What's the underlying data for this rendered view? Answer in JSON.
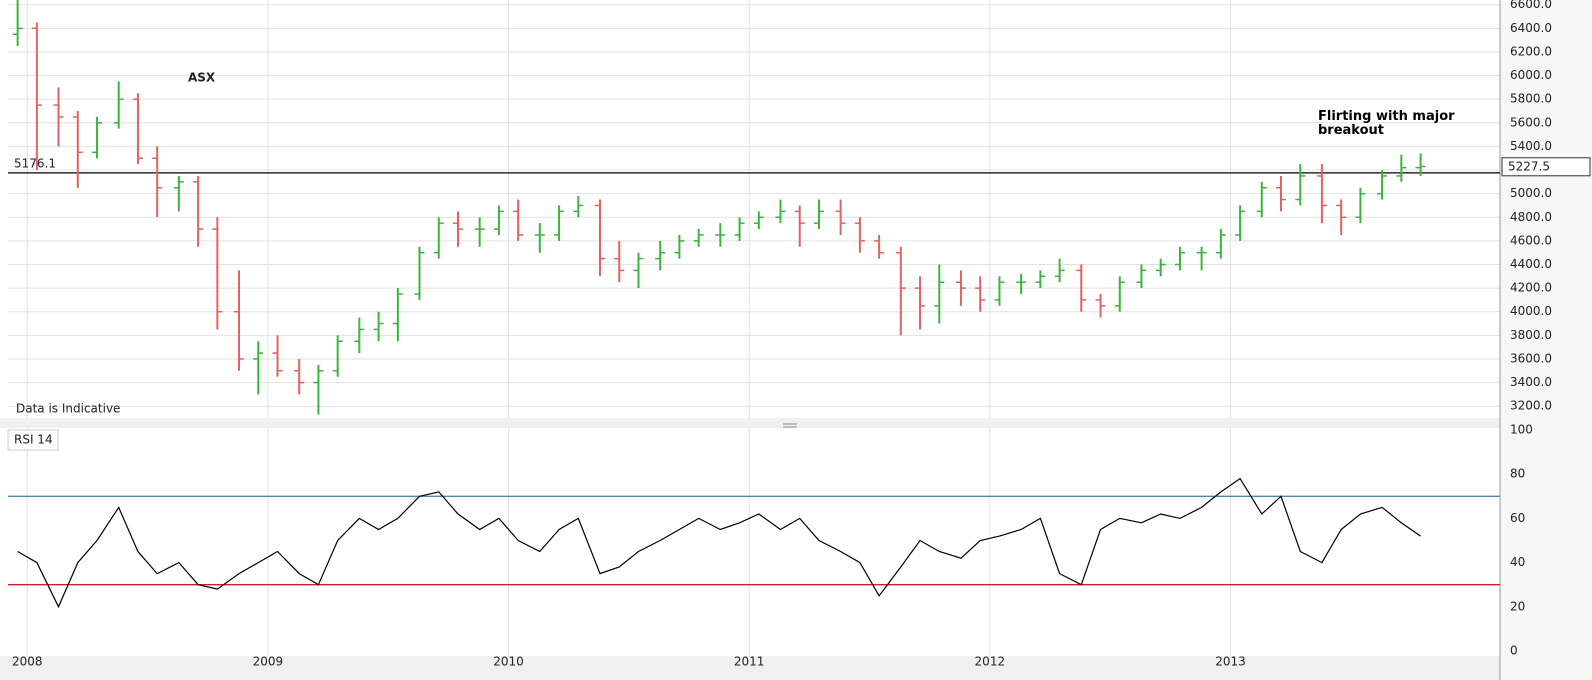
{
  "chart_data": [
    {
      "type": "ohlc",
      "title": "ASX",
      "annotation": "Flirting with major breakout",
      "note": "Data is Indicative",
      "reference_line": 5176.1,
      "last_price": 5227.5,
      "up_color": "#3cb43c",
      "down_color": "#e06262",
      "x": [
        2007.96,
        2008.04,
        2008.13,
        2008.21,
        2008.29,
        2008.38,
        2008.46,
        2008.54,
        2008.63,
        2008.71,
        2008.79,
        2008.88,
        2008.96,
        2009.04,
        2009.13,
        2009.21,
        2009.29,
        2009.38,
        2009.46,
        2009.54,
        2009.63,
        2009.71,
        2009.79,
        2009.88,
        2009.96,
        2010.04,
        2010.13,
        2010.21,
        2010.29,
        2010.38,
        2010.46,
        2010.54,
        2010.63,
        2010.71,
        2010.79,
        2010.88,
        2010.96,
        2011.04,
        2011.13,
        2011.21,
        2011.29,
        2011.38,
        2011.46,
        2011.54,
        2011.63,
        2011.71,
        2011.79,
        2011.88,
        2011.96,
        2012.04,
        2012.13,
        2012.21,
        2012.29,
        2012.38,
        2012.46,
        2012.54,
        2012.63,
        2012.71,
        2012.79,
        2012.88,
        2012.96,
        2013.04,
        2013.13,
        2013.21,
        2013.29,
        2013.38,
        2013.46,
        2013.54,
        2013.63,
        2013.71,
        2013.79
      ],
      "open": [
        6350,
        6400,
        5750,
        5650,
        5350,
        5600,
        5800,
        5300,
        5050,
        5100,
        4700,
        4000,
        3600,
        3650,
        3500,
        3400,
        3500,
        3750,
        3850,
        3900,
        4150,
        4500,
        4750,
        4700,
        4700,
        4850,
        4650,
        4650,
        4850,
        4900,
        4450,
        4350,
        4450,
        4500,
        4600,
        4650,
        4650,
        4750,
        4800,
        4850,
        4750,
        4850,
        4750,
        4600,
        4500,
        4200,
        4050,
        4250,
        4200,
        4100,
        4250,
        4250,
        4300,
        4350,
        4100,
        4050,
        4250,
        4350,
        4400,
        4500,
        4500,
        4650,
        4850,
        5050,
        4950,
        5150,
        4900,
        4800,
        5000,
        5150,
        5220
      ],
      "high": [
        6640,
        6450,
        5900,
        5700,
        5650,
        5950,
        5850,
        5400,
        5150,
        5150,
        4800,
        4350,
        3750,
        3800,
        3600,
        3550,
        3800,
        3950,
        4000,
        4200,
        4550,
        4800,
        4850,
        4800,
        4900,
        4950,
        4750,
        4900,
        4980,
        4950,
        4600,
        4500,
        4600,
        4650,
        4700,
        4750,
        4800,
        4850,
        4950,
        4900,
        4950,
        4950,
        4800,
        4650,
        4550,
        4300,
        4400,
        4350,
        4300,
        4300,
        4320,
        4350,
        4450,
        4400,
        4150,
        4300,
        4400,
        4450,
        4550,
        4550,
        4700,
        4900,
        5100,
        5150,
        5250,
        5250,
        4950,
        5050,
        5200,
        5330,
        5340
      ],
      "low": [
        6250,
        5200,
        5400,
        5050,
        5300,
        5550,
        5250,
        4800,
        4850,
        4550,
        3850,
        3500,
        3300,
        3450,
        3300,
        3130,
        3450,
        3650,
        3750,
        3750,
        4100,
        4450,
        4550,
        4550,
        4650,
        4600,
        4500,
        4600,
        4800,
        4300,
        4250,
        4200,
        4350,
        4450,
        4550,
        4550,
        4600,
        4700,
        4750,
        4550,
        4700,
        4650,
        4500,
        4450,
        3800,
        3850,
        3900,
        4050,
        4000,
        4050,
        4150,
        4200,
        4250,
        4000,
        3950,
        4000,
        4200,
        4300,
        4350,
        4350,
        4450,
        4600,
        4800,
        4850,
        4900,
        4750,
        4650,
        4750,
        4950,
        5100,
        5150
      ],
      "close": [
        6400,
        5750,
        5650,
        5350,
        5600,
        5800,
        5300,
        5050,
        5100,
        4700,
        4000,
        3600,
        3650,
        3500,
        3400,
        3500,
        3750,
        3850,
        3900,
        4150,
        4500,
        4750,
        4700,
        4700,
        4850,
        4650,
        4650,
        4850,
        4900,
        4450,
        4350,
        4450,
        4500,
        4600,
        4650,
        4650,
        4750,
        4800,
        4850,
        4750,
        4850,
        4750,
        4600,
        4500,
        4200,
        4050,
        4250,
        4200,
        4100,
        4250,
        4250,
        4300,
        4350,
        4100,
        4050,
        4250,
        4350,
        4400,
        4500,
        4500,
        4650,
        4850,
        5050,
        4950,
        5150,
        4900,
        4800,
        5000,
        5150,
        5220,
        5230
      ],
      "xlim": [
        2007.92,
        2014.12
      ],
      "ylim": [
        3100,
        6640
      ],
      "yticks": [
        {
          "value": 3200,
          "label": "3200.0"
        },
        {
          "value": 3400,
          "label": "3400.0"
        },
        {
          "value": 3600,
          "label": "3600.0"
        },
        {
          "value": 3800,
          "label": "3800.0"
        },
        {
          "value": 4000,
          "label": "4000.0"
        },
        {
          "value": 4200,
          "label": "4200.0"
        },
        {
          "value": 4400,
          "label": "4400.0"
        },
        {
          "value": 4600,
          "label": "4600.0"
        },
        {
          "value": 4800,
          "label": "4800.0"
        },
        {
          "value": 5000,
          "label": "5000.0"
        },
        {
          "value": 5200,
          "label": "5200.0"
        },
        {
          "value": 5400,
          "label": "5400.0"
        },
        {
          "value": 5600,
          "label": "5600.0"
        },
        {
          "value": 5800,
          "label": "5800.0"
        },
        {
          "value": 6000,
          "label": "6000.0"
        },
        {
          "value": 6200,
          "label": "6200.0"
        },
        {
          "value": 6400,
          "label": "6400.0"
        },
        {
          "value": 6600,
          "label": "6600.0"
        }
      ],
      "grid": true
    },
    {
      "type": "line",
      "title": "RSI 14",
      "color": "#000000",
      "levels": [
        {
          "value": 70,
          "color": "#4a8ab5"
        },
        {
          "value": 30,
          "color": "#d02020"
        }
      ],
      "x": [
        2007.96,
        2008.04,
        2008.13,
        2008.21,
        2008.29,
        2008.38,
        2008.46,
        2008.54,
        2008.63,
        2008.71,
        2008.79,
        2008.88,
        2008.96,
        2009.04,
        2009.13,
        2009.21,
        2009.29,
        2009.38,
        2009.46,
        2009.54,
        2009.63,
        2009.71,
        2009.79,
        2009.88,
        2009.96,
        2010.04,
        2010.13,
        2010.21,
        2010.29,
        2010.38,
        2010.46,
        2010.54,
        2010.63,
        2010.71,
        2010.79,
        2010.88,
        2010.96,
        2011.04,
        2011.13,
        2011.21,
        2011.29,
        2011.38,
        2011.46,
        2011.54,
        2011.63,
        2011.71,
        2011.79,
        2011.88,
        2011.96,
        2012.04,
        2012.13,
        2012.21,
        2012.29,
        2012.38,
        2012.46,
        2012.54,
        2012.63,
        2012.71,
        2012.79,
        2012.88,
        2012.96,
        2013.04,
        2013.13,
        2013.21,
        2013.29,
        2013.38,
        2013.46,
        2013.54,
        2013.63,
        2013.71,
        2013.79
      ],
      "values": [
        45,
        40,
        20,
        40,
        50,
        65,
        45,
        35,
        40,
        30,
        28,
        35,
        40,
        45,
        35,
        30,
        50,
        60,
        55,
        60,
        70,
        72,
        62,
        55,
        60,
        50,
        45,
        55,
        60,
        35,
        38,
        45,
        50,
        55,
        60,
        55,
        58,
        62,
        55,
        60,
        50,
        45,
        40,
        25,
        38,
        50,
        45,
        42,
        50,
        52,
        55,
        60,
        35,
        30,
        55,
        60,
        58,
        62,
        60,
        65,
        72,
        78,
        62,
        70,
        45,
        40,
        55,
        62,
        65,
        58,
        52
      ],
      "xlim": [
        2007.92,
        2014.12
      ],
      "xticks": [
        2008,
        2009,
        2010,
        2011,
        2012,
        2013
      ],
      "ylim": [
        0,
        100
      ],
      "yticks": [
        0,
        20,
        40,
        60,
        80,
        100
      ],
      "grid": true
    }
  ]
}
